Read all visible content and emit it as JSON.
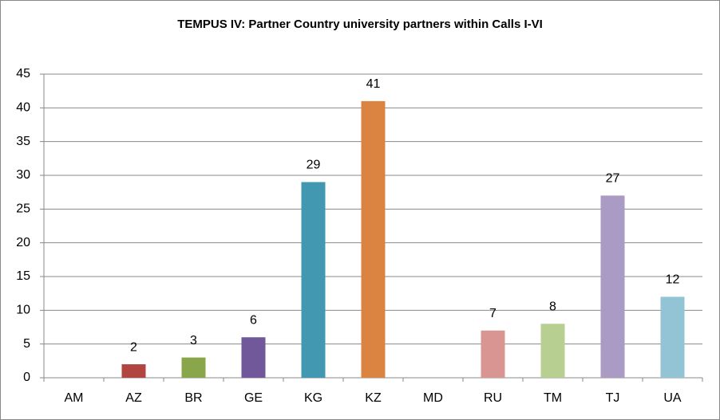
{
  "chart_data": {
    "type": "bar",
    "title": "TEMPUS IV: Partner Country university partners within Calls I-VI",
    "categories": [
      "AM",
      "AZ",
      "BR",
      "GE",
      "KG",
      "KZ",
      "MD",
      "RU",
      "TM",
      "TJ",
      "UA"
    ],
    "values": [
      0,
      2,
      3,
      6,
      29,
      41,
      0,
      7,
      8,
      27,
      12
    ],
    "colors": [
      null,
      "#b0463f",
      "#8aa64a",
      "#71589a",
      "#4198b0",
      "#db8442",
      null,
      "#d99592",
      "#b8cf92",
      "#a99bc3",
      "#93c4d6"
    ],
    "ylim": [
      0,
      45
    ],
    "yticks": [
      0,
      5,
      10,
      15,
      20,
      25,
      30,
      35,
      40,
      45
    ],
    "grid": true
  }
}
